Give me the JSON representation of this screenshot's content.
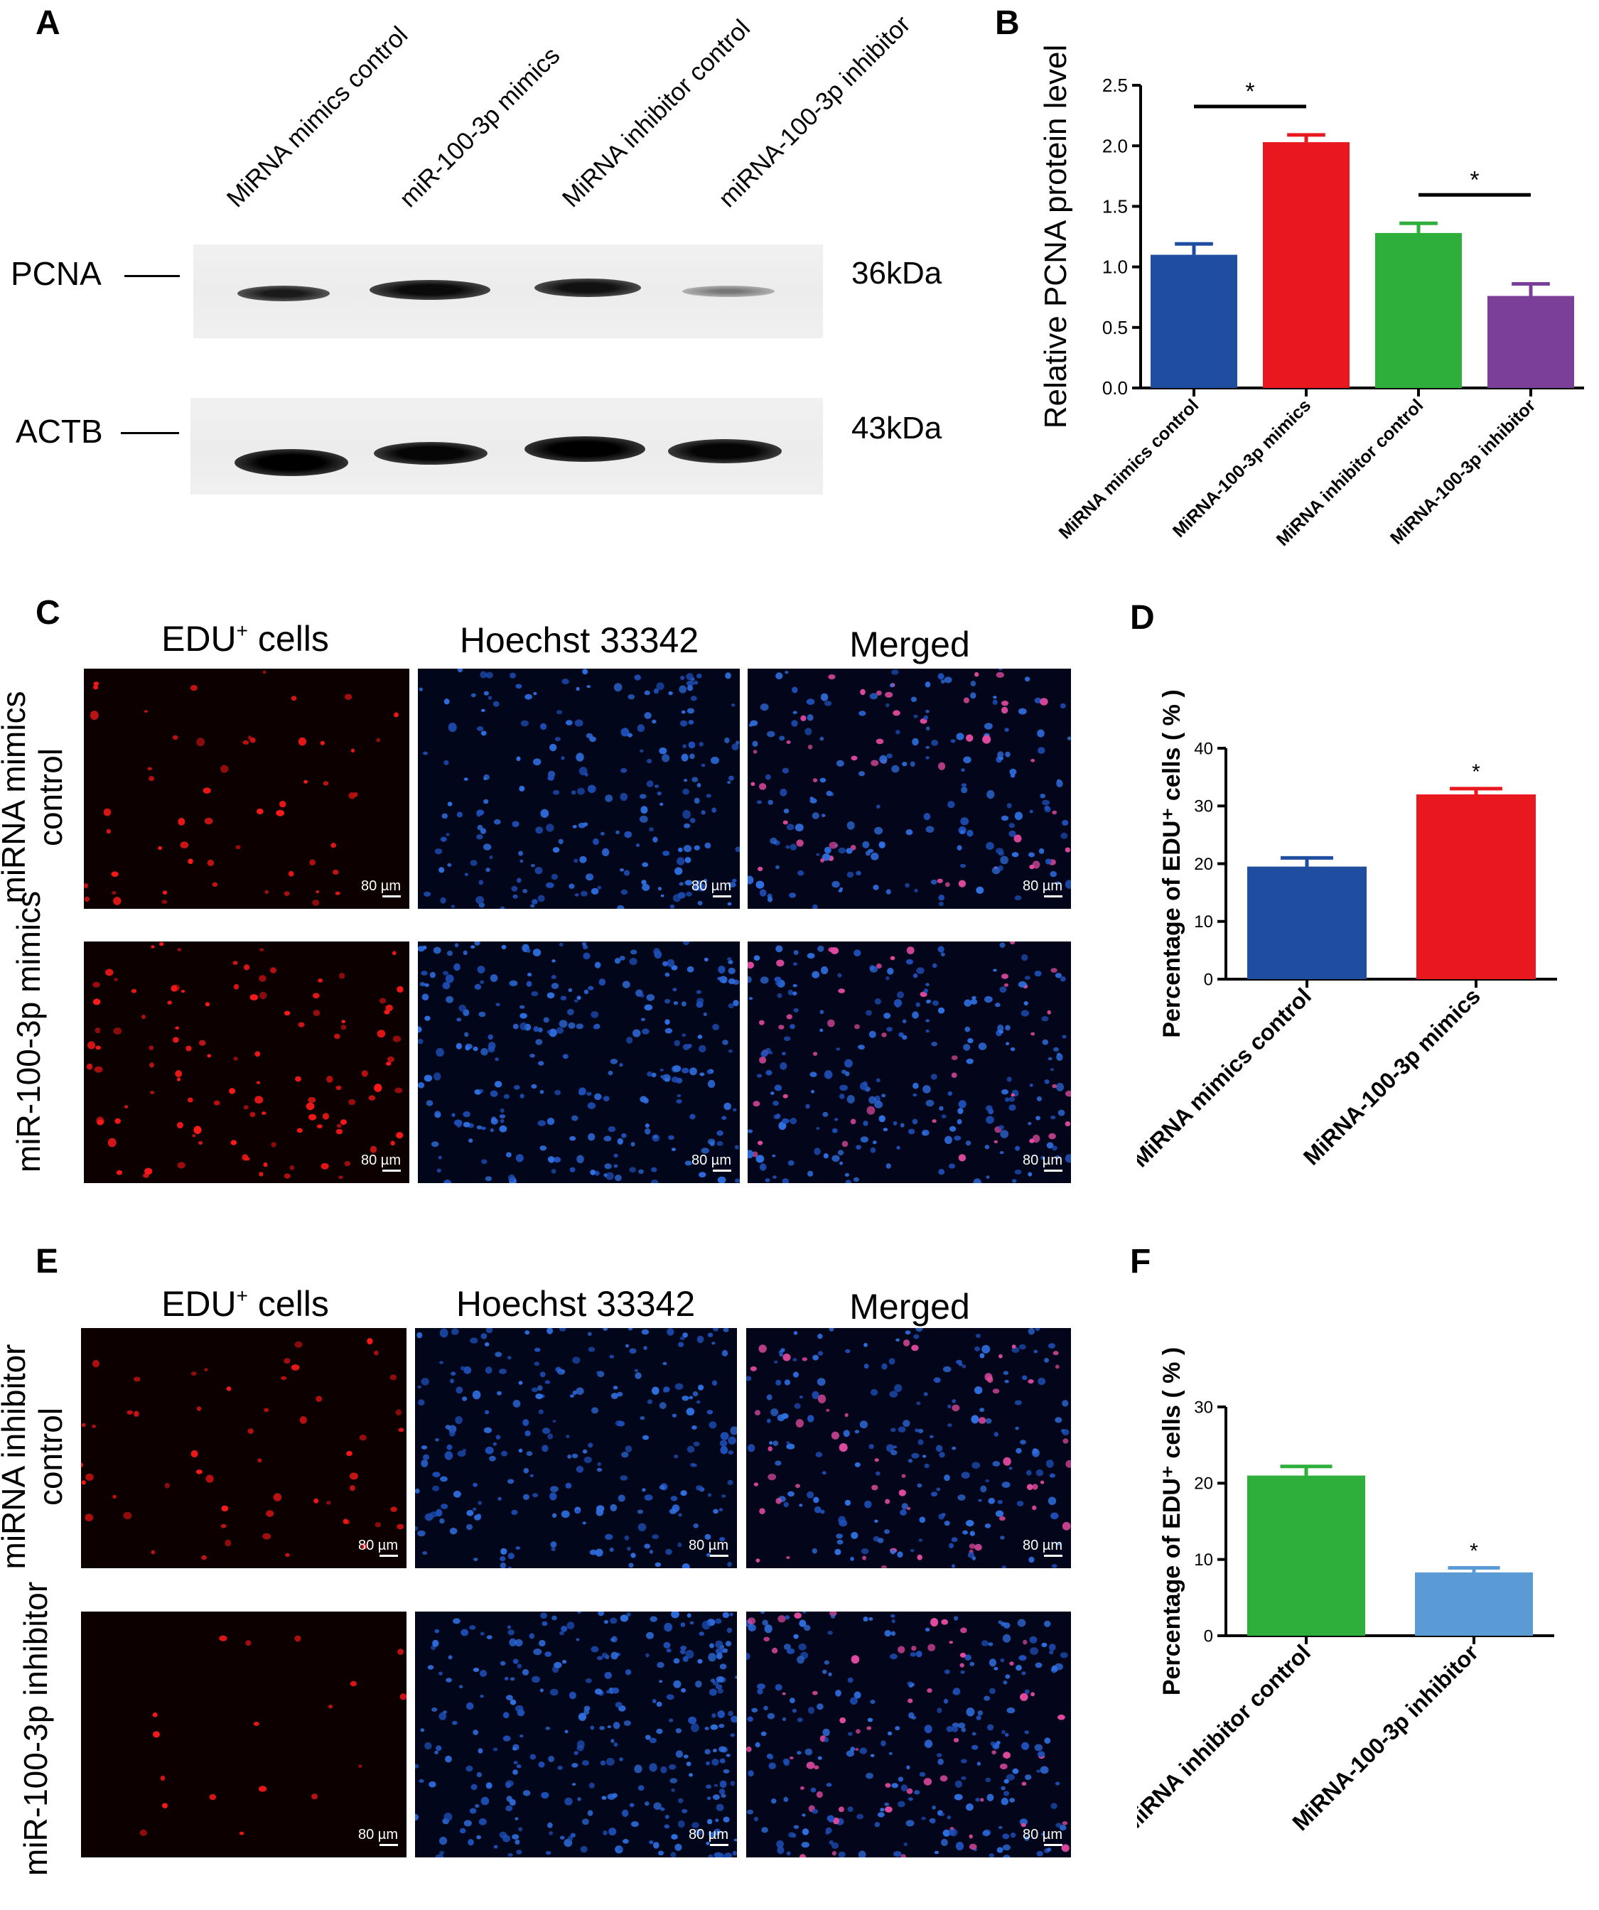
{
  "panels": {
    "A": {
      "letter": "A",
      "lanes": [
        "MiRNA mimics control",
        "miR-100-3p mimics",
        "MiRNA inhibitor control",
        "miRNA-100-3p inhibitor"
      ],
      "blots": [
        {
          "name": "PCNA",
          "kda": "36kDa"
        },
        {
          "name": "ACTB",
          "kda": "43kDa"
        }
      ]
    },
    "C": {
      "letter": "C",
      "columns": {
        "edu": "EDU",
        "edu_sup": "+",
        "edu_suffix": " cells",
        "hoechst": "Hoechst 33342",
        "merged": "Merged"
      },
      "rows": [
        {
          "line1": "miRNA mimics",
          "line2": "control"
        },
        {
          "line1": "miR-100-3p mimics",
          "line2": ""
        }
      ],
      "scale_label": "80 µm"
    },
    "E": {
      "letter": "E",
      "columns": {
        "edu": "EDU",
        "edu_sup": "+",
        "edu_suffix": " cells",
        "hoechst": "Hoechst 33342",
        "merged": "Merged"
      },
      "rows": [
        {
          "line1": "miRNA inhibitor",
          "line2": "control"
        },
        {
          "line1": "miR-100-3p inhibitor",
          "line2": ""
        }
      ],
      "scale_label": "80 µm"
    },
    "B": {
      "letter": "B"
    },
    "D": {
      "letter": "D"
    },
    "F": {
      "letter": "F"
    }
  },
  "chart_data": [
    {
      "panel": "B",
      "type": "bar",
      "categories": [
        "MiRNA mimics control",
        "MiRNA-100-3p mimics",
        "MiRNA inhibitor control",
        "MiRNA-100-3p inhibitor"
      ],
      "values": [
        1.1,
        2.03,
        1.28,
        0.76
      ],
      "errors": [
        0.09,
        0.06,
        0.08,
        0.1
      ],
      "colors": [
        "#1f4ea1",
        "#e8181e",
        "#2eaf3c",
        "#7b3f9a"
      ],
      "ylabel": "Relative PCNA protein level",
      "ylim": [
        0,
        2.5
      ],
      "yticks": [
        "0.0",
        "0.5",
        "1.0",
        "1.5",
        "2.0",
        "2.5"
      ],
      "significance": [
        {
          "between": [
            0,
            1
          ],
          "label": "*"
        },
        {
          "between": [
            2,
            3
          ],
          "label": "*"
        }
      ]
    },
    {
      "panel": "D",
      "type": "bar",
      "categories": [
        "MiRNA mimics control",
        "MiRNA-100-3p mimics"
      ],
      "values": [
        19.5,
        32.0
      ],
      "errors": [
        1.5,
        1.0
      ],
      "colors": [
        "#1f4ea1",
        "#e8181e"
      ],
      "ylabel": "Percentage of EDU⁺ cells ( % )",
      "ylim": [
        0,
        40
      ],
      "yticks": [
        "0",
        "10",
        "20",
        "30",
        "40"
      ],
      "significance": [
        {
          "over": 1,
          "label": "*"
        }
      ]
    },
    {
      "panel": "F",
      "type": "bar",
      "categories": [
        "MiRNA inhibitor control",
        "MiRNA-100-3p inhibitor"
      ],
      "values": [
        21.0,
        8.3
      ],
      "errors": [
        1.2,
        0.6
      ],
      "colors": [
        "#2eaf3c",
        "#5b9bd5"
      ],
      "ylabel": "Percentage of EDU⁺ cells ( % )",
      "ylim": [
        0,
        30
      ],
      "yticks": [
        "0",
        "10",
        "20",
        "30"
      ],
      "significance": [
        {
          "over": 1,
          "label": "*"
        }
      ]
    }
  ]
}
